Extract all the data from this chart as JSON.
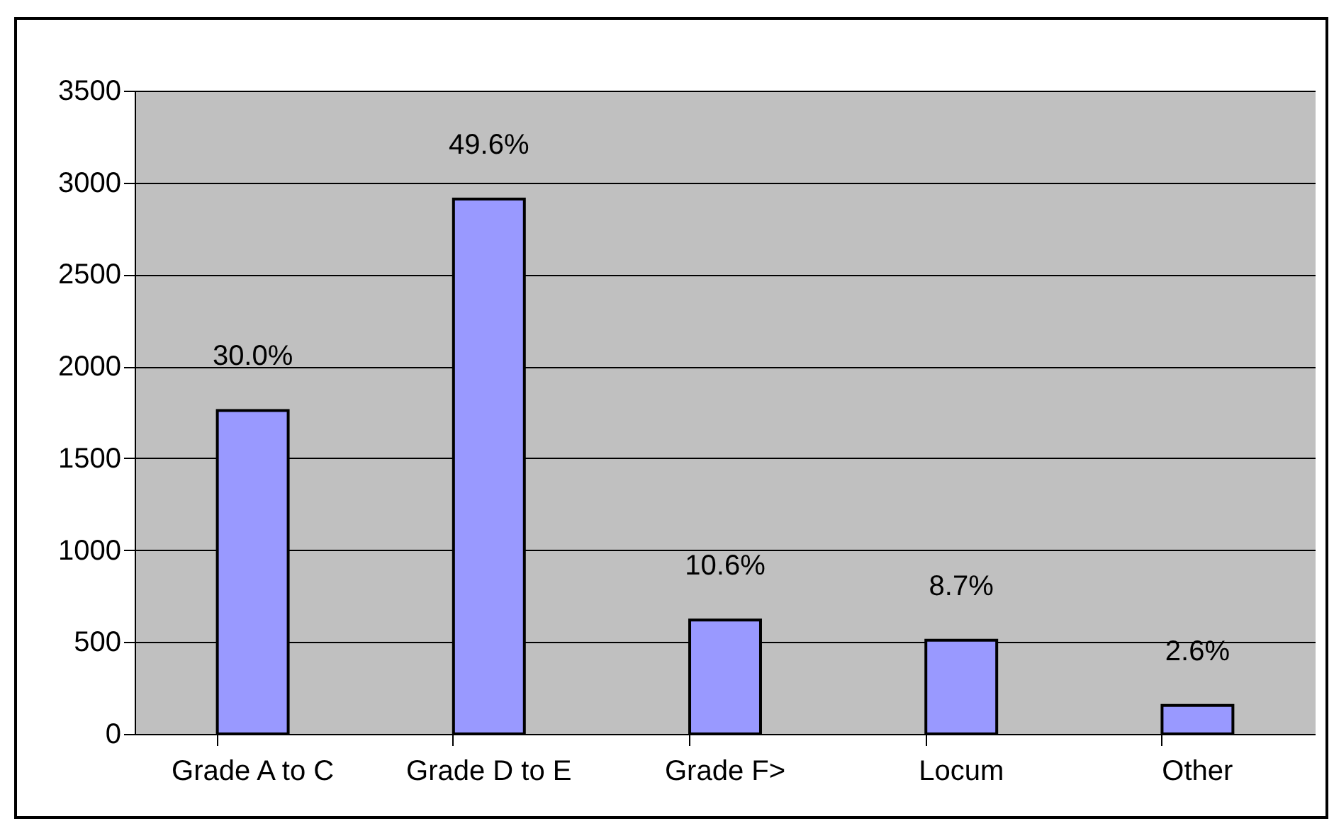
{
  "chart_data": {
    "type": "bar",
    "categories": [
      "Grade A to C",
      "Grade D to E",
      "Grade F>",
      "Locum",
      "Other"
    ],
    "values": [
      1760,
      2910,
      620,
      510,
      155
    ],
    "annotations": [
      {
        "text": "30.0%",
        "x": "Grade A to C",
        "y": 1760
      },
      {
        "text": "49.6%",
        "x": "Grade D to E",
        "y": 2910
      },
      {
        "text": "10.6%",
        "x": "Grade F>",
        "y": 620
      },
      {
        "text": "8.7%",
        "x": "Locum",
        "y": 510
      },
      {
        "text": "2.6%",
        "x": "Other",
        "y": 155
      }
    ],
    "color": "#9999ff",
    "ylim": [
      0,
      3500
    ],
    "yticks": [
      0,
      500,
      1000,
      1500,
      2000,
      2500,
      3000,
      3500
    ],
    "grid": "y"
  }
}
